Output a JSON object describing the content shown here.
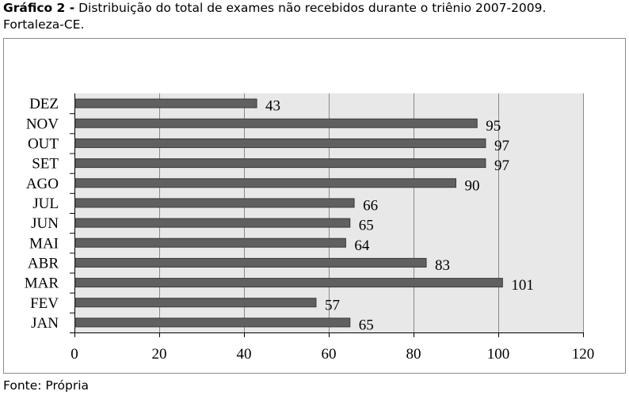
{
  "caption": {
    "prefix": "Gráfico 2 -",
    "text": " Distribuição do total de exames não recebidos durante o triênio 2007-2009.",
    "line2": "Fortaleza-CE."
  },
  "source": "Fonte: Própria",
  "colors": {
    "bar": "#606060",
    "bar_border": "#3a3a3a",
    "plot_bg": "#e8e8e8",
    "grid": "#8a8a8a"
  },
  "chart_data": {
    "type": "bar",
    "orientation": "horizontal",
    "categories": [
      "JAN",
      "FEV",
      "MAR",
      "ABR",
      "MAI",
      "JUN",
      "JUL",
      "AGO",
      "SET",
      "OUT",
      "NOV",
      "DEZ"
    ],
    "values": [
      65,
      57,
      101,
      83,
      64,
      65,
      66,
      90,
      97,
      97,
      95,
      43
    ],
    "xlim": [
      0,
      120
    ],
    "xticks": [
      0,
      20,
      40,
      60,
      80,
      100,
      120
    ],
    "grid": true,
    "data_labels": true
  }
}
